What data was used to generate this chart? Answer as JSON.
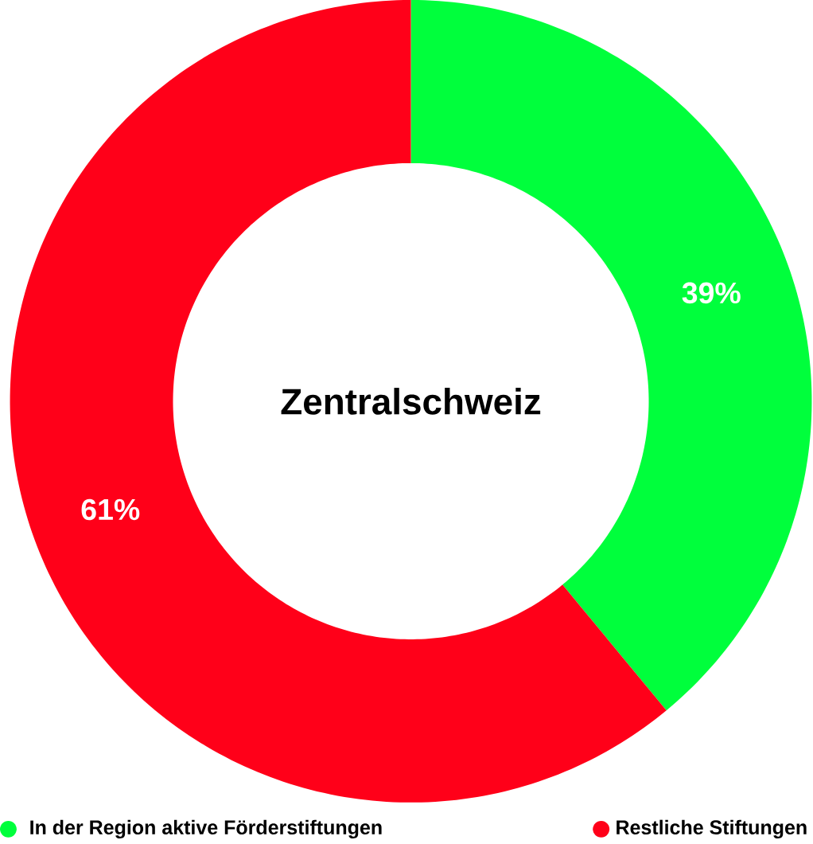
{
  "chart_data": {
    "type": "donut",
    "title": "Zentralschweiz",
    "categories": [
      "In der Region aktive Förderstiftungen",
      "Restliche Stiftungen"
    ],
    "values": [
      39,
      61
    ],
    "colors": [
      "#00ff3c",
      "#ff0019"
    ],
    "value_labels": [
      "39%",
      "61%"
    ],
    "legend": "bottom"
  }
}
